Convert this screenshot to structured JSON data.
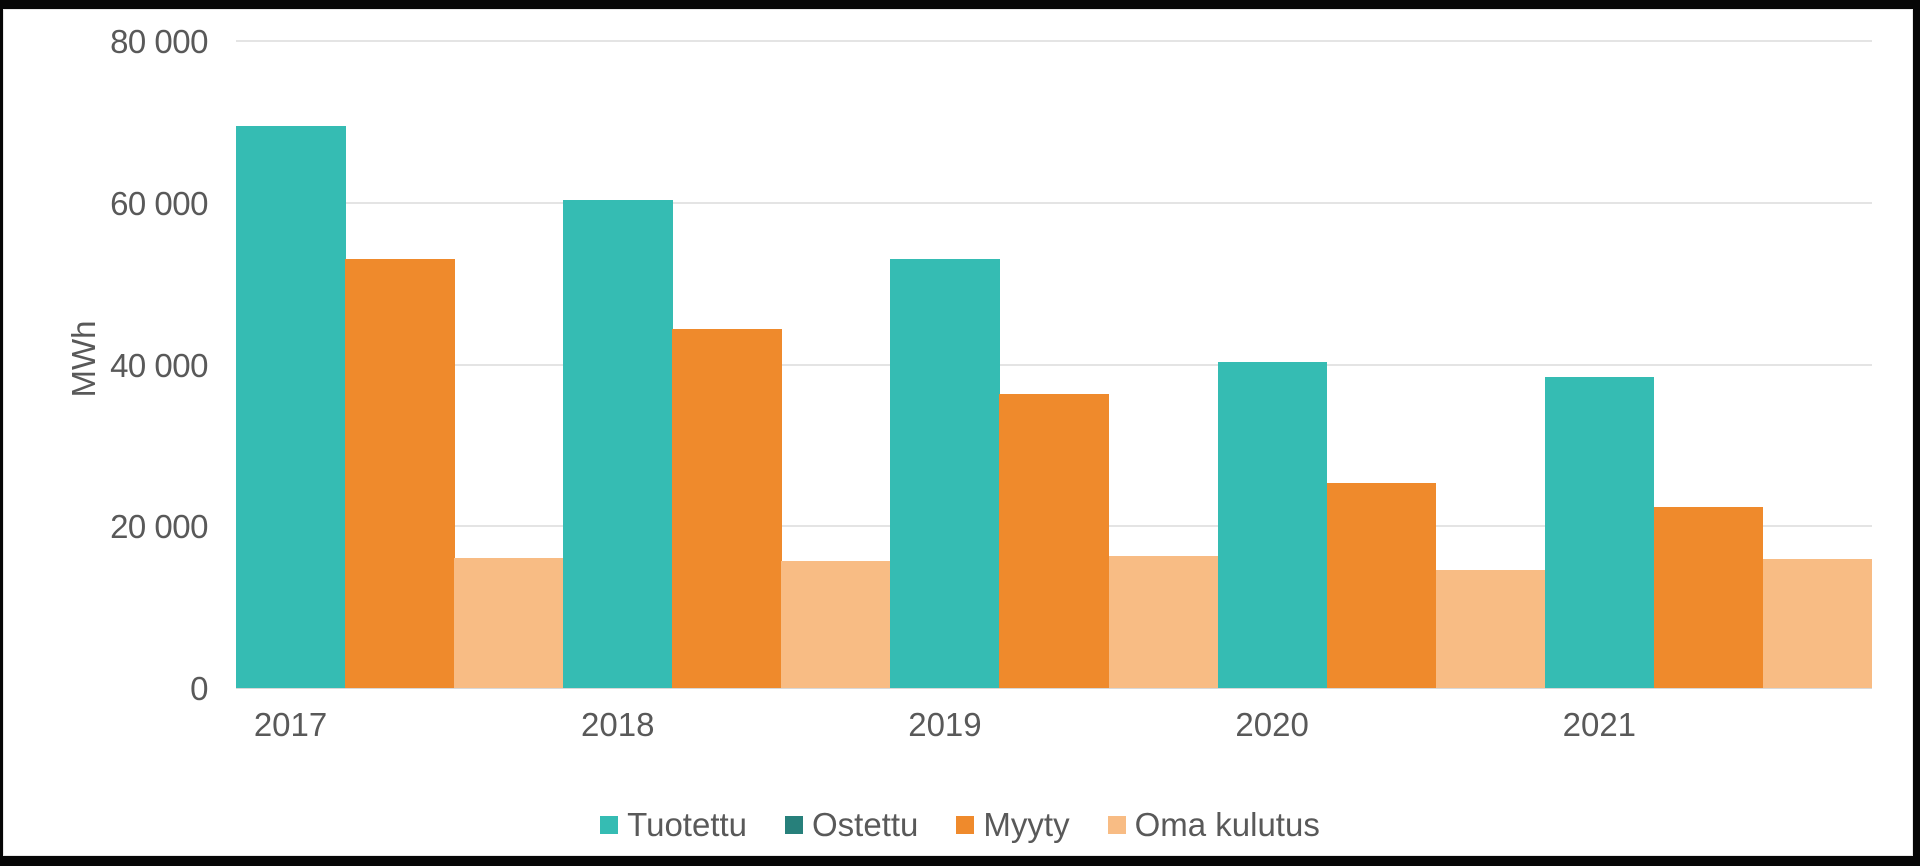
{
  "frame": {
    "background_color": "#060606",
    "card_background": "#ffffff",
    "card_border": "#e7e7e7"
  },
  "chart_data": {
    "type": "bar",
    "title": "",
    "xlabel": "",
    "ylabel": "MWh",
    "categories": [
      "2017",
      "2018",
      "2019",
      "2020",
      "2021"
    ],
    "series": [
      {
        "name": "Tuotettu",
        "color": "#35bcb3",
        "values": [
          69500,
          60400,
          53100,
          40300,
          38400
        ]
      },
      {
        "name": "Ostettu",
        "color": "#27807b",
        "values": [
          0,
          0,
          0,
          0,
          0
        ]
      },
      {
        "name": "Myyty",
        "color": "#ef8a2c",
        "values": [
          53100,
          44400,
          36300,
          25400,
          22400
        ]
      },
      {
        "name": "Oma kulutus",
        "color": "#f8bc84",
        "values": [
          16100,
          15700,
          16300,
          14600,
          15900
        ]
      }
    ],
    "ylim": [
      0,
      80000
    ],
    "yticks": [
      {
        "value": 80000,
        "label": "80 000"
      },
      {
        "value": 60000,
        "label": "60 000"
      },
      {
        "value": 40000,
        "label": "40 000"
      },
      {
        "value": 20000,
        "label": "20 000"
      },
      {
        "value": 0,
        "label": "0"
      }
    ],
    "grid": true,
    "legend_position": "bottom",
    "bar_gap": 0,
    "colors": {
      "grid": "#e4e4e4",
      "axis": "#d8d8d8",
      "text": "#595959"
    }
  }
}
